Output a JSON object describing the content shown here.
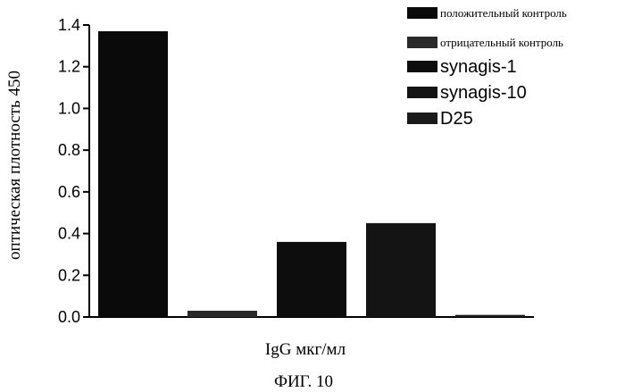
{
  "chart_data": {
    "type": "bar",
    "title": "",
    "xlabel": "IgG мкг/мл",
    "ylabel": "оптическая плотность 450",
    "caption": "ФИГ. 10",
    "ylim": [
      0,
      1.4
    ],
    "yticks": [
      "0.0",
      "0.2",
      "0.4",
      "0.6",
      "0.8",
      "1.0",
      "1.2",
      "1.4"
    ],
    "series": [
      {
        "name": "положительный контроль",
        "value": 1.37,
        "color": "#0a0a0a"
      },
      {
        "name": "отрицательный контроль",
        "value": 0.03,
        "color": "#2a2a2a"
      },
      {
        "name": "synagis-1",
        "value": 0.36,
        "color": "#0d0d0d"
      },
      {
        "name": "synagis-10",
        "value": 0.45,
        "color": "#141414"
      },
      {
        "name": "D25",
        "value": 0.01,
        "color": "#1a1a1a"
      }
    ],
    "legend_position": "top-right",
    "grid": false
  }
}
